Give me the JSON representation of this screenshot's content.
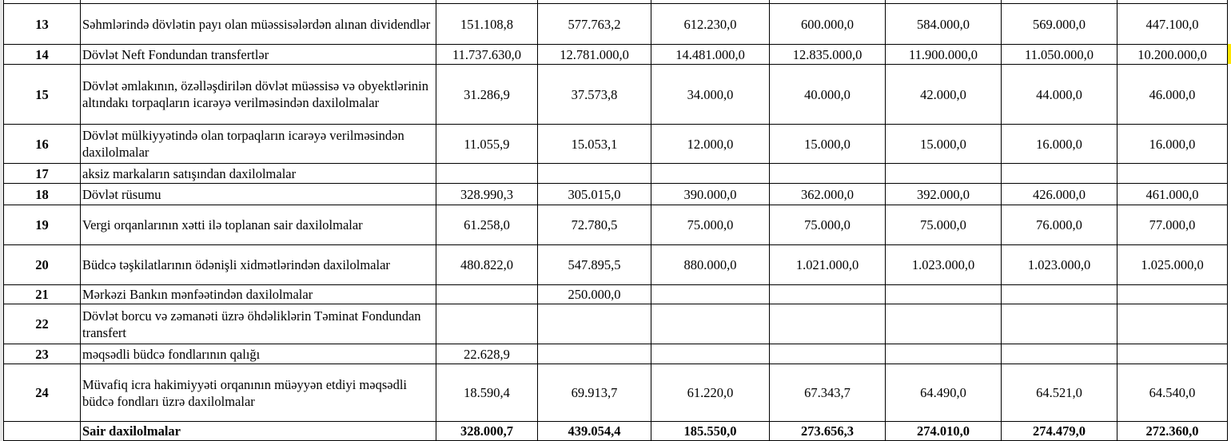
{
  "rows": [
    {
      "no": "13",
      "label": "Səhmlərində dövlətin payı olan müəssisələrdən alınan dividendlər",
      "values": [
        "151.108,8",
        "577.763,2",
        "612.230,0",
        "600.000,0",
        "584.000,0",
        "569.000,0",
        "447.100,0"
      ]
    },
    {
      "no": "14",
      "label": "Dövlət Neft Fondundan transfertlər",
      "values": [
        "11.737.630,0",
        "12.781.000,0",
        "14.481.000,0",
        "12.835.000,0",
        "11.900.000,0",
        "11.050.000,0",
        "10.200.000,0"
      ]
    },
    {
      "no": "15",
      "label": "Dövlət əmlakının, özəlləşdirilən dövlət müəssisə və obyektlərinin altındakı torpaqların icarəyə verilməsindən daxilolmalar",
      "values": [
        "31.286,9",
        "37.573,8",
        "34.000,0",
        "40.000,0",
        "42.000,0",
        "44.000,0",
        "46.000,0"
      ]
    },
    {
      "no": "16",
      "label": "Dövlət mülkiyyətində olan torpaqların icarəyə verilməsindən daxilolmalar",
      "values": [
        "11.055,9",
        "15.053,1",
        "12.000,0",
        "15.000,0",
        "15.000,0",
        "16.000,0",
        "16.000,0"
      ]
    },
    {
      "no": "17",
      "label": "aksiz markaların satışından daxilolmalar",
      "values": [
        "",
        "",
        "",
        "",
        "",
        "",
        ""
      ]
    },
    {
      "no": "18",
      "label": "Dövlət rüsumu",
      "values": [
        "328.990,3",
        "305.015,0",
        "390.000,0",
        "362.000,0",
        "392.000,0",
        "426.000,0",
        "461.000,0"
      ]
    },
    {
      "no": "19",
      "label": "Vergi orqanlarının xətti ilə toplanan sair daxilolmalar",
      "values": [
        "61.258,0",
        "72.780,5",
        "75.000,0",
        "75.000,0",
        "75.000,0",
        "76.000,0",
        "77.000,0"
      ]
    },
    {
      "no": "20",
      "label": "Büdcə təşkilatlarının ödənişli xidmətlərindən daxilolmalar",
      "values": [
        "480.822,0",
        "547.895,5",
        "880.000,0",
        "1.021.000,0",
        "1.023.000,0",
        "1.023.000,0",
        "1.025.000,0"
      ]
    },
    {
      "no": "21",
      "label": "Mərkəzi Bankın mənfəətindən daxilolmalar",
      "values": [
        "",
        "250.000,0",
        "",
        "",
        "",
        "",
        ""
      ]
    },
    {
      "no": "22",
      "label": "Dövlət borcu və zəmanəti üzrə öhdəliklərin Təminat Fondundan transfert",
      "values": [
        "",
        "",
        "",
        "",
        "",
        "",
        ""
      ]
    },
    {
      "no": "23",
      "label": "məqsədli büdcə fondlarının qalığı",
      "values": [
        "22.628,9",
        "",
        "",
        "",
        "",
        "",
        ""
      ]
    },
    {
      "no": "24",
      "label": "Müvafiq icra hakimiyyəti orqanının müəyyən etdiyi məqsədli büdcə fondları üzrə daxilolmalar",
      "values": [
        "18.590,4",
        "69.913,7",
        "61.220,0",
        "67.343,7",
        "64.490,0",
        "64.521,0",
        "64.540,0"
      ]
    }
  ],
  "total": {
    "no": "",
    "label": "Sair daxilolmalar",
    "values": [
      "328.000,7",
      "439.054,4",
      "185.550,0",
      "273.656,3",
      "274.010,0",
      "274.479,0",
      "272.360,0"
    ]
  }
}
